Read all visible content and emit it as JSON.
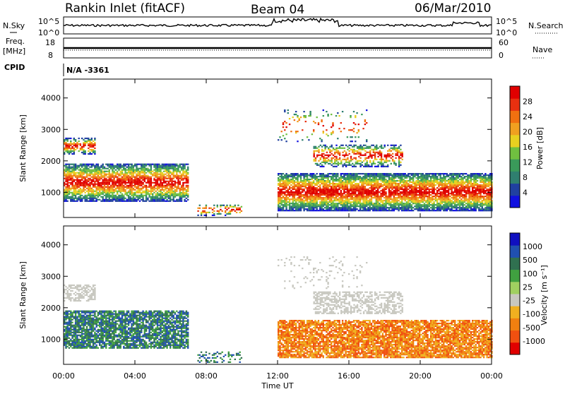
{
  "header": {
    "station": "Rankin Inlet (fitACF)",
    "beam": "Beam 04",
    "date": "06/Mar/2010"
  },
  "top_panels": {
    "nsky_label": "N.Sky",
    "nsearch_label": "N.Search",
    "nsky_ticks": [
      "10^5",
      "10^0"
    ],
    "freq_label": "Freq.",
    "freq_unit": "[MHz]",
    "freq_ticks": [
      "18",
      "8"
    ],
    "nave_label": "Nave",
    "nave_ticks": [
      "60",
      "0"
    ],
    "cpid_label": "CPID",
    "cpid_value": "N/A -3361"
  },
  "colors": {
    "power_scale": [
      "#1010e0",
      "#2040a0",
      "#2f7f6f",
      "#3a9a5a",
      "#70c040",
      "#e8d020",
      "#f0a020",
      "#f07010",
      "#e83010",
      "#e00000"
    ],
    "velocity_scale": [
      "#e00000",
      "#f05010",
      "#f08010",
      "#f0b020",
      "#c8c8c0",
      "#a0d060",
      "#40a040",
      "#307050",
      "#2050b0",
      "#1010c0"
    ]
  },
  "chart_data": [
    {
      "type": "heatmap",
      "title": "Power",
      "ylabel": "Slant Range [km]",
      "xlabel": "Time UT",
      "x_ticks": [
        "00:00",
        "04:00",
        "08:00",
        "12:00",
        "16:00",
        "20:00",
        "00:00"
      ],
      "y_ticks": [
        "1000",
        "2000",
        "3000",
        "4000"
      ],
      "ylim": [
        200,
        4600
      ],
      "colorbar_label": "Power [dB]",
      "colorbar_ticks": [
        "4",
        "8",
        "12",
        "16",
        "20",
        "24",
        "28"
      ]
    },
    {
      "type": "heatmap",
      "title": "Velocity",
      "ylabel": "Slant Range [km]",
      "xlabel": "Time UT",
      "x_ticks": [
        "00:00",
        "04:00",
        "08:00",
        "12:00",
        "16:00",
        "20:00",
        "00:00"
      ],
      "y_ticks": [
        "1000",
        "2000",
        "3000",
        "4000"
      ],
      "ylim": [
        200,
        4600
      ],
      "colorbar_label": "Velocity [m s⁻¹]",
      "colorbar_ticks": [
        "1000",
        "500",
        "100",
        "25",
        "-25",
        "-100",
        "-500",
        "-1000"
      ]
    }
  ]
}
